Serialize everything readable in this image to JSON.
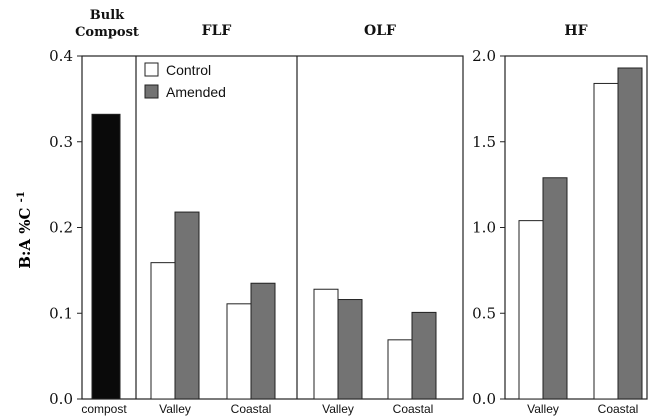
{
  "chart_data": {
    "type": "bar",
    "ylabel": "B:A %C",
    "ylabel_sup": "-1",
    "legend": {
      "placement": "top-left",
      "entries": [
        {
          "name": "Control",
          "color": "#ffffff"
        },
        {
          "name": "Amended",
          "color": "#737373"
        }
      ]
    },
    "colors": {
      "bulk": "#0a0a0a",
      "control": "#ffffff",
      "amended": "#737373",
      "frame": "#222222"
    },
    "left_axis": {
      "ylim": [
        0,
        0.4
      ],
      "ticks": [
        "0.0",
        "0.1",
        "0.2",
        "0.3",
        "0.4"
      ]
    },
    "right_axis": {
      "ylim": [
        0,
        2.0
      ],
      "ticks": [
        "0.0",
        "0.5",
        "1.0",
        "1.5",
        "2.0"
      ]
    },
    "panels": [
      {
        "title_lines": [
          "Bulk",
          "Compost"
        ],
        "axis": "left",
        "categories": [
          "compost"
        ],
        "series": [
          {
            "key": "bulk",
            "values": [
              0.332
            ]
          }
        ]
      },
      {
        "title_lines": [
          "FLF"
        ],
        "axis": "left",
        "categories": [
          "Valley",
          "Coastal"
        ],
        "series": [
          {
            "key": "control",
            "name": "Control",
            "values": [
              0.159,
              0.111
            ]
          },
          {
            "key": "amended",
            "name": "Amended",
            "values": [
              0.218,
              0.135
            ]
          }
        ]
      },
      {
        "title_lines": [
          "OLF"
        ],
        "axis": "left",
        "categories": [
          "Valley",
          "Coastal"
        ],
        "series": [
          {
            "key": "control",
            "name": "Control",
            "values": [
              0.128,
              0.069
            ]
          },
          {
            "key": "amended",
            "name": "Amended",
            "values": [
              0.116,
              0.101
            ]
          }
        ]
      },
      {
        "title_lines": [
          "HF"
        ],
        "axis": "right",
        "categories": [
          "Valley",
          "Coastal"
        ],
        "series": [
          {
            "key": "control",
            "name": "Control",
            "values": [
              1.04,
              1.84
            ]
          },
          {
            "key": "amended",
            "name": "Amended",
            "values": [
              1.29,
              1.93
            ]
          }
        ]
      }
    ]
  }
}
